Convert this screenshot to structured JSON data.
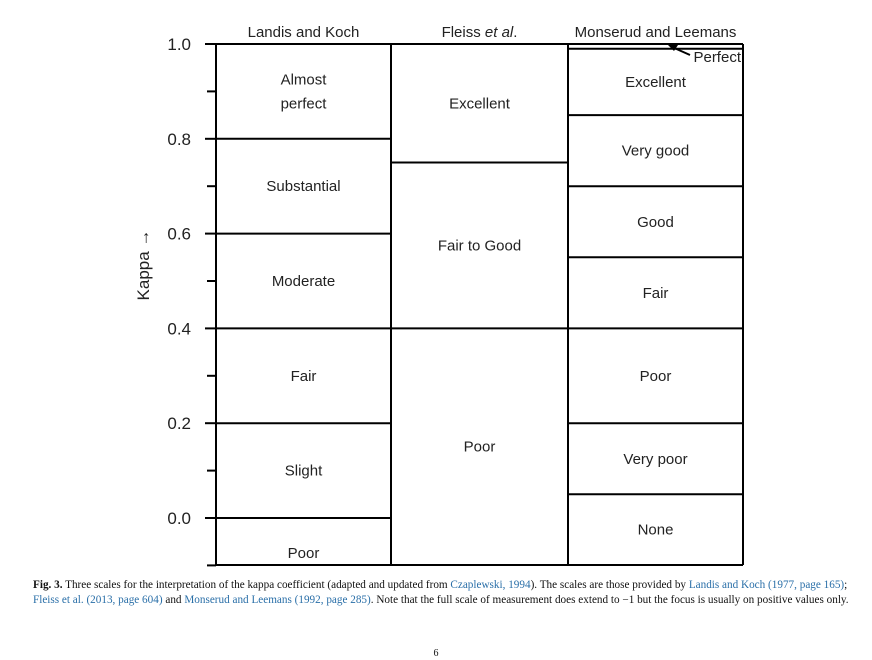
{
  "figure": {
    "y_axis_title": "Kappa →",
    "y_ticks": [
      "1.0",
      "0.8",
      "0.6",
      "0.4",
      "0.2",
      "0.0"
    ],
    "columns": [
      {
        "header": "Landis and Koch",
        "bands": [
          {
            "from": -0.1,
            "to": 0.0,
            "label": [
              "Poor"
            ]
          },
          {
            "from": 0.0,
            "to": 0.2,
            "label": [
              "Slight"
            ]
          },
          {
            "from": 0.2,
            "to": 0.4,
            "label": [
              "Fair"
            ]
          },
          {
            "from": 0.4,
            "to": 0.6,
            "label": [
              "Moderate"
            ]
          },
          {
            "from": 0.6,
            "to": 0.8,
            "label": [
              "Substantial"
            ]
          },
          {
            "from": 0.8,
            "to": 1.0,
            "label": [
              "Almost",
              "perfect"
            ]
          }
        ]
      },
      {
        "header": "Fleiss",
        "header_italic": "et al",
        "header_suffix": ".",
        "bands": [
          {
            "from": -0.1,
            "to": 0.4,
            "label": [
              "Poor"
            ]
          },
          {
            "from": 0.4,
            "to": 0.75,
            "label": [
              "Fair to Good"
            ]
          },
          {
            "from": 0.75,
            "to": 1.0,
            "label": [
              "Excellent"
            ]
          }
        ]
      },
      {
        "header": "Monserud and Leemans",
        "bands": [
          {
            "from": -0.1,
            "to": 0.05,
            "label": [
              "None"
            ]
          },
          {
            "from": 0.05,
            "to": 0.2,
            "label": [
              "Very poor"
            ]
          },
          {
            "from": 0.2,
            "to": 0.4,
            "label": [
              "Poor"
            ]
          },
          {
            "from": 0.4,
            "to": 0.55,
            "label": [
              "Fair"
            ]
          },
          {
            "from": 0.55,
            "to": 0.7,
            "label": [
              "Good"
            ]
          },
          {
            "from": 0.7,
            "to": 0.85,
            "label": [
              "Very good"
            ]
          },
          {
            "from": 0.85,
            "to": 0.99,
            "label": [
              "Excellent"
            ]
          },
          {
            "from": 0.99,
            "to": 1.0,
            "label": []
          }
        ],
        "annotation": "Perfect"
      }
    ]
  },
  "caption": {
    "fig_label": "Fig. 3.",
    "text_1": " Three scales for the interpretation of the kappa coefficient (adapted and updated from ",
    "ref_1": "Czaplewski, 1994",
    "text_2": "). The scales are those provided by ",
    "ref_2": "Landis and Koch (1977, page 165)",
    "text_3": "; ",
    "ref_3": "Fleiss et al. (2013, page 604)",
    "text_4": " and ",
    "ref_4": "Monserud and Leemans (1992, page 285)",
    "text_5": ". Note that the full scale of measurement does extend to −1 but the focus is usually on positive values only."
  },
  "page_number": "6",
  "colors": {
    "reference_link": "#2a6fa8",
    "line": "#000000"
  }
}
